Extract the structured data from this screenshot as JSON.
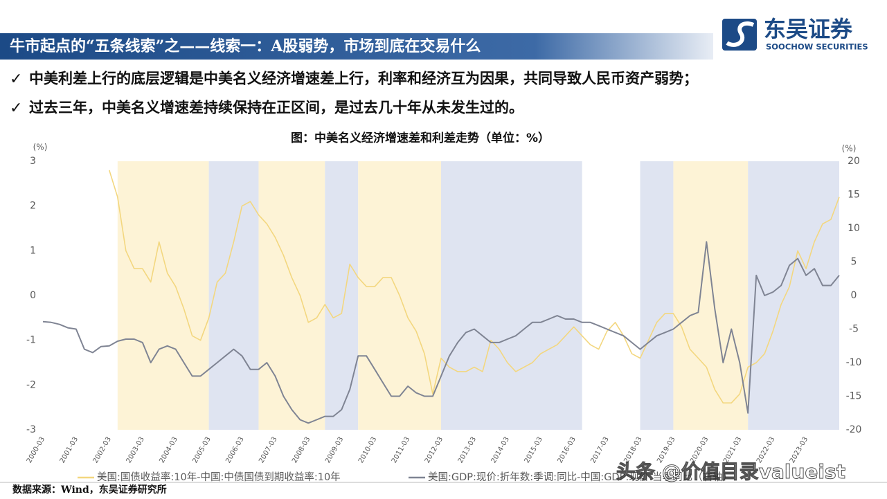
{
  "header": {
    "title": "牛市起点的“五条线索”之——线索一：A股弱势，市场到底在交易什么",
    "logo_name": "东吴证券",
    "logo_sub": "SOOCHOW SECURITIES"
  },
  "bullets": [
    "中美利差上行的底层逻辑是中美名义经济增速差上行，利率和经济互为因果，共同导致人民币资产弱势；",
    "过去三年，中美名义增速差持续保持在正区间，是过去几十年从未发生过的。"
  ],
  "chart_data": {
    "type": "line",
    "title": "图：中美名义经济增速差和利差走势（单位：%）",
    "ylabel": "(%)",
    "y2label": "(%)",
    "x": [
      "2000-03",
      "2000-06",
      "2000-09",
      "2000-12",
      "2001-03",
      "2001-06",
      "2001-09",
      "2001-12",
      "2002-03",
      "2002-06",
      "2002-09",
      "2002-12",
      "2003-03",
      "2003-06",
      "2003-09",
      "2003-12",
      "2004-03",
      "2004-06",
      "2004-09",
      "2004-12",
      "2005-03",
      "2005-06",
      "2005-09",
      "2005-12",
      "2006-03",
      "2006-06",
      "2006-09",
      "2006-12",
      "2007-03",
      "2007-06",
      "2007-09",
      "2007-12",
      "2008-03",
      "2008-06",
      "2008-09",
      "2008-12",
      "2009-03",
      "2009-06",
      "2009-09",
      "2009-12",
      "2010-03",
      "2010-06",
      "2010-09",
      "2010-12",
      "2011-03",
      "2011-06",
      "2011-09",
      "2011-12",
      "2012-03",
      "2012-06",
      "2012-09",
      "2012-12",
      "2013-03",
      "2013-06",
      "2013-09",
      "2013-12",
      "2014-03",
      "2014-06",
      "2014-09",
      "2014-12",
      "2015-03",
      "2015-06",
      "2015-09",
      "2015-12",
      "2016-03",
      "2016-06",
      "2016-09",
      "2016-12",
      "2017-03",
      "2017-06",
      "2017-09",
      "2017-12",
      "2018-03",
      "2018-06",
      "2018-09",
      "2018-12",
      "2019-03",
      "2019-06",
      "2019-09",
      "2019-12",
      "2020-03",
      "2020-06",
      "2020-09",
      "2020-12",
      "2021-03",
      "2021-06",
      "2021-09",
      "2021-12",
      "2022-03",
      "2022-06",
      "2022-09",
      "2022-12",
      "2023-03",
      "2023-06",
      "2023-09",
      "2023-12",
      "2024-03"
    ],
    "series": [
      {
        "name": "美国:国债收益率:10年-中国:中债国债到期收益率:10年",
        "color": "#f3d77f",
        "values": [
          null,
          null,
          null,
          null,
          null,
          null,
          null,
          null,
          2.8,
          2.2,
          1.0,
          0.6,
          0.6,
          0.3,
          1.2,
          0.5,
          0.2,
          -0.3,
          -0.9,
          -1.0,
          -0.5,
          0.3,
          0.5,
          1.2,
          2.0,
          2.1,
          1.8,
          1.6,
          1.3,
          0.9,
          0.4,
          0.0,
          -0.6,
          -0.5,
          -0.2,
          -0.5,
          -0.4,
          0.7,
          0.4,
          0.2,
          0.2,
          0.4,
          0.4,
          0.0,
          -0.5,
          -0.8,
          -1.3,
          -2.2,
          -1.4,
          -1.6,
          -1.7,
          -1.7,
          -1.6,
          -1.7,
          -1.0,
          -1.2,
          -1.5,
          -1.7,
          -1.6,
          -1.5,
          -1.3,
          -1.2,
          -1.1,
          -0.9,
          -0.7,
          -0.9,
          -1.1,
          -1.2,
          -0.8,
          -0.6,
          -0.9,
          -1.3,
          -1.4,
          -1.0,
          -0.6,
          -0.4,
          -0.4,
          -0.7,
          -1.2,
          -1.4,
          -1.6,
          -2.1,
          -2.4,
          -2.4,
          -2.2,
          -1.6,
          -1.5,
          -1.3,
          -0.8,
          -0.2,
          0.2,
          1.0,
          0.6,
          1.2,
          1.6,
          1.7,
          2.2
        ]
      },
      {
        "name": "美国:GDP:现价:折年数:季调:同比-中国:GDP:现价:当季同比（右轴）",
        "color": "#7f8493",
        "axis": "y2",
        "values": [
          -3.9,
          -4,
          -4.3,
          -4.8,
          -5,
          -8,
          -8.5,
          -7.6,
          -7.5,
          -6.8,
          -6.5,
          -6.5,
          -7,
          -10,
          -8,
          -7.5,
          -8,
          -10,
          -12,
          -12,
          -11,
          -10,
          -9,
          -8,
          -9,
          -11,
          -11,
          -10,
          -12,
          -15,
          -17,
          -18.5,
          -19,
          -18.5,
          -18,
          -18,
          -17,
          -14,
          -9,
          -9,
          -11,
          -13,
          -15,
          -15,
          -13.5,
          -14.5,
          -15,
          -15,
          -12,
          -9,
          -7,
          -5.5,
          -5,
          -6,
          -7,
          -7,
          -6.5,
          -6,
          -5,
          -4,
          -4,
          -3.5,
          -3,
          -3.5,
          -3.5,
          -4,
          -4,
          -4.5,
          -5,
          -5.5,
          -6,
          -7,
          -8,
          -7,
          -6,
          -5.5,
          -5,
          -4,
          -3,
          -2.5,
          8,
          -2,
          -10,
          -5,
          -10,
          -17.5,
          3,
          0,
          0.5,
          1.5,
          4.5,
          5.5,
          3,
          4,
          1.5,
          1.5,
          3
        ]
      }
    ],
    "xlim": [
      "2000-03",
      "2024-03"
    ],
    "xticks": [
      "2000-03",
      "2001-03",
      "2002-03",
      "2003-03",
      "2004-03",
      "2005-03",
      "2006-03",
      "2007-03",
      "2008-03",
      "2009-03",
      "2010-03",
      "2011-03",
      "2012-03",
      "2013-03",
      "2014-03",
      "2015-03",
      "2016-03",
      "2017-03",
      "2018-03",
      "2019-03",
      "2020-03",
      "2021-03",
      "2022-03",
      "2023-03"
    ],
    "ylim": [
      -3,
      3
    ],
    "yticks": [
      -3,
      -2,
      -1,
      0,
      1,
      2,
      3
    ],
    "y2lim": [
      -20,
      20
    ],
    "y2ticks": [
      -20,
      -15,
      -10,
      -5,
      0,
      5,
      10,
      15,
      20
    ],
    "shaded_periods": [
      {
        "start": "2002-06",
        "end": "2005-03",
        "color": "#fdf3d6"
      },
      {
        "start": "2005-03",
        "end": "2006-09",
        "color": "#dfe4f1"
      },
      {
        "start": "2006-09",
        "end": "2008-09",
        "color": "#fdf3d6"
      },
      {
        "start": "2008-09",
        "end": "2009-09",
        "color": "#dfe4f1"
      },
      {
        "start": "2009-09",
        "end": "2012-03",
        "color": "#fdf3d6"
      },
      {
        "start": "2012-03",
        "end": "2016-06",
        "color": "#dfe4f1"
      },
      {
        "start": "2018-03",
        "end": "2019-03",
        "color": "#dfe4f1"
      },
      {
        "start": "2019-03",
        "end": "2021-06",
        "color": "#fdf3d6"
      },
      {
        "start": "2021-06",
        "end": "2024-03",
        "color": "#dfe4f1"
      }
    ],
    "grid": false
  },
  "watermark": "头条 @价值目录valueist",
  "source": "数据来源：Wind，东吴证券研究所"
}
